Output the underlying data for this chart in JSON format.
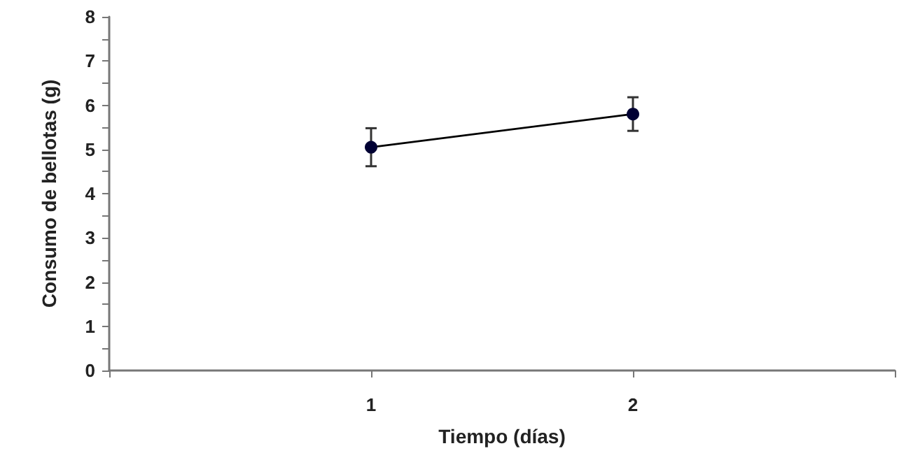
{
  "chart_data": {
    "type": "line",
    "xlabel": "Tiempo (días)",
    "ylabel": "Consumo de bellotas (g)",
    "x": [
      1,
      2
    ],
    "series": [
      {
        "color": "#000033",
        "values": [
          5.05,
          5.8
        ],
        "errors": [
          0.43,
          0.38
        ]
      }
    ],
    "xlim": [
      0,
      3
    ],
    "xticks": [
      {
        "value": 0,
        "label": null
      },
      1,
      2,
      {
        "value": 3,
        "label": null
      }
    ],
    "ylim": [
      0,
      8
    ],
    "yticks": [
      0,
      {
        "value": 0.5,
        "label": null
      },
      1,
      {
        "value": 1.5,
        "label": null
      },
      2,
      {
        "value": 2.5,
        "label": null
      },
      3,
      {
        "value": 3.5,
        "label": null
      },
      4,
      {
        "value": 4.5,
        "label": null
      },
      5,
      {
        "value": 5.5,
        "label": null
      },
      6,
      {
        "value": 6.5,
        "label": null
      },
      7,
      {
        "value": 7.5,
        "label": null
      },
      8
    ],
    "grid": false,
    "marker": "circle",
    "line_style": "solid"
  }
}
